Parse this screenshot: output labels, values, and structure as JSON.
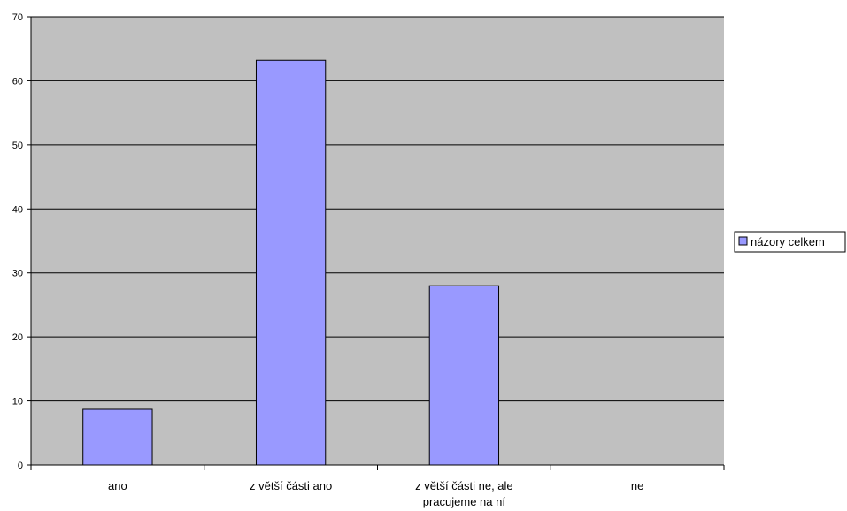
{
  "chart_data": {
    "type": "bar",
    "categories": [
      [
        "ano"
      ],
      [
        "z větší části ano"
      ],
      [
        "z větší části ne, ale",
        "pracujeme na ní"
      ],
      [
        "ne"
      ]
    ],
    "series": [
      {
        "name": "názory celkem",
        "values": [
          8.7,
          63.2,
          28.0,
          0
        ]
      }
    ],
    "ylim": [
      0,
      70
    ],
    "yticks": [
      0,
      10,
      20,
      30,
      40,
      50,
      60,
      70
    ],
    "grid": true,
    "legend": "right",
    "colors": {
      "plot_background": "#c0c0c0",
      "bar_fill": "#9999ff",
      "bar_stroke": "#000000",
      "gridline": "#000000"
    }
  }
}
